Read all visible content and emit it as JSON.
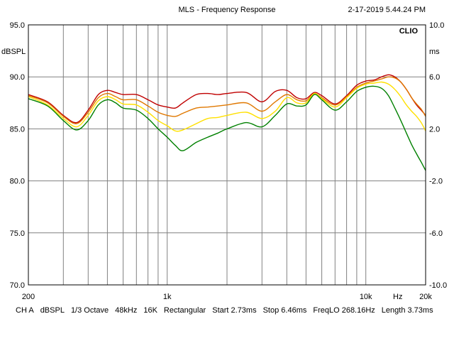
{
  "header": {
    "title": "MLS - Frequency Response",
    "timestamp": "2-17-2019 5.44.24 PM",
    "brand": "CLIO"
  },
  "footer": [
    "CH A",
    "dBSPL",
    "1/3 Octave",
    "48kHz",
    "16K",
    "Rectangular",
    "Start 2.73ms",
    "Stop 6.46ms",
    "FreqLO 268.16Hz",
    "Length 3.73ms"
  ],
  "chart_data": {
    "type": "line",
    "xscale": "log",
    "xlim": [
      200,
      20000
    ],
    "ylim": [
      70,
      95
    ],
    "y2lim": [
      -10,
      10
    ],
    "ylabel": "dBSPL",
    "y2label": "ms",
    "xlabel": "Hz",
    "y_ticks": [
      "70.0",
      "75.0",
      "80.0",
      "85.0",
      "90.0",
      "95.0"
    ],
    "y2_ticks": [
      "-10.0",
      "-6.0",
      "-2.0",
      "2.0",
      "6.0",
      "10.0"
    ],
    "x_ticks": [
      {
        "value": 200,
        "label": "200"
      },
      {
        "value": 1000,
        "label": "1k"
      },
      {
        "value": 10000,
        "label": "10k"
      },
      {
        "value": 20000,
        "label": "20k"
      }
    ],
    "grid": true,
    "colors": {
      "grid": "#808080",
      "frame": "#000000"
    },
    "x": [
      200,
      250,
      300,
      350,
      400,
      450,
      500,
      550,
      600,
      700,
      800,
      900,
      1000,
      1100,
      1200,
      1400,
      1600,
      1800,
      2000,
      2500,
      3000,
      3500,
      4000,
      4500,
      5000,
      5500,
      6000,
      7000,
      8000,
      9000,
      10000,
      11000,
      12000,
      13000,
      14000,
      15000,
      16000,
      17000,
      18000,
      19000,
      20000
    ],
    "series": [
      {
        "name": "trace-red",
        "color": "#c00000",
        "values": [
          88.3,
          87.6,
          86.3,
          85.6,
          86.8,
          88.3,
          88.7,
          88.5,
          88.3,
          88.3,
          87.8,
          87.3,
          87.1,
          87.0,
          87.5,
          88.3,
          88.4,
          88.3,
          88.4,
          88.5,
          87.6,
          88.6,
          88.7,
          88.0,
          87.9,
          88.5,
          88.2,
          87.4,
          88.2,
          89.2,
          89.6,
          89.7,
          90.0,
          90.2,
          90.0,
          89.5,
          88.8,
          88.0,
          87.3,
          86.8,
          86.3
        ]
      },
      {
        "name": "trace-orange",
        "color": "#e07800",
        "values": [
          88.2,
          87.5,
          86.2,
          85.5,
          86.6,
          88.0,
          88.4,
          88.1,
          87.8,
          87.8,
          87.2,
          86.6,
          86.3,
          86.2,
          86.5,
          87.0,
          87.1,
          87.2,
          87.3,
          87.5,
          86.7,
          87.6,
          88.3,
          87.8,
          87.7,
          88.4,
          88.0,
          87.3,
          88.1,
          89.0,
          89.4,
          89.6,
          89.8,
          90.0,
          89.9,
          89.5,
          88.8,
          88.0,
          87.4,
          86.9,
          86.2
        ]
      },
      {
        "name": "trace-yellow",
        "color": "#ffe000",
        "values": [
          88.1,
          87.3,
          86.0,
          85.2,
          86.3,
          87.7,
          88.1,
          87.8,
          87.4,
          87.3,
          86.6,
          85.8,
          85.3,
          84.8,
          84.9,
          85.5,
          86.0,
          86.1,
          86.3,
          86.6,
          86.0,
          86.7,
          88.0,
          87.5,
          87.5,
          88.4,
          87.9,
          87.1,
          88.0,
          88.9,
          89.3,
          89.4,
          89.5,
          89.3,
          88.8,
          88.1,
          87.3,
          86.7,
          86.2,
          85.6,
          84.8
        ]
      },
      {
        "name": "trace-green",
        "color": "#008000",
        "values": [
          87.9,
          87.2,
          85.8,
          84.9,
          85.8,
          87.3,
          87.8,
          87.5,
          87.0,
          86.8,
          86.0,
          85.0,
          84.2,
          83.4,
          82.9,
          83.7,
          84.2,
          84.6,
          85.0,
          85.6,
          85.2,
          86.3,
          87.4,
          87.2,
          87.3,
          88.3,
          87.8,
          86.8,
          87.6,
          88.6,
          89.0,
          89.1,
          88.9,
          88.2,
          87.0,
          85.8,
          84.6,
          83.5,
          82.6,
          81.8,
          81.0
        ]
      }
    ]
  }
}
